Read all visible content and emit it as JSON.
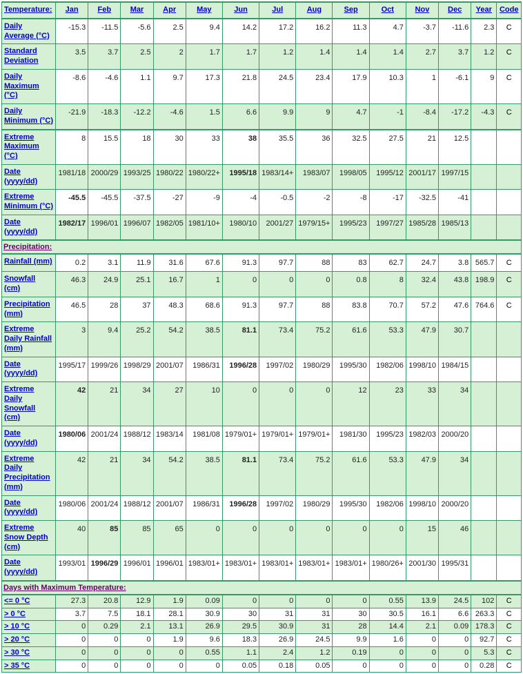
{
  "columns": [
    "Jan",
    "Feb",
    "Mar",
    "Apr",
    "May",
    "Jun",
    "Jul",
    "Aug",
    "Sep",
    "Oct",
    "Nov",
    "Dec",
    "Year",
    "Code"
  ],
  "sections": {
    "temperature": "Temperature:",
    "precipitation": "Precipitation:",
    "days_max_temp": "Days with Maximum Temperature:"
  },
  "rows": {
    "daily_avg": {
      "label": "Daily Average (°C)",
      "alt": false,
      "v": [
        "-15.3",
        "-11.5",
        "-5.6",
        "2.5",
        "9.4",
        "14.2",
        "17.2",
        "16.2",
        "11.3",
        "4.7",
        "-3.7",
        "-11.6",
        "2.3",
        "C"
      ]
    },
    "std_dev": {
      "label": "Standard Deviation",
      "alt": true,
      "v": [
        "3.5",
        "3.7",
        "2.5",
        "2",
        "1.7",
        "1.7",
        "1.2",
        "1.4",
        "1.4",
        "1.4",
        "2.7",
        "3.7",
        "1.2",
        "C"
      ]
    },
    "daily_max": {
      "label": "Daily Maximum (°C)",
      "alt": false,
      "v": [
        "-8.6",
        "-4.6",
        "1.1",
        "9.7",
        "17.3",
        "21.8",
        "24.5",
        "23.4",
        "17.9",
        "10.3",
        "1",
        "-6.1",
        "9",
        "C"
      ]
    },
    "daily_min": {
      "label": "Daily Minimum (°C)",
      "alt": true,
      "v": [
        "-21.9",
        "-18.3",
        "-12.2",
        "-4.6",
        "1.5",
        "6.6",
        "9.9",
        "9",
        "4.7",
        "-1",
        "-8.4",
        "-17.2",
        "-4.3",
        "C"
      ]
    },
    "ext_max": {
      "label": "Extreme Maximum (°C)",
      "alt": false,
      "v": [
        "8",
        "15.5",
        "18",
        "30",
        "33",
        "38",
        "35.5",
        "36",
        "32.5",
        "27.5",
        "21",
        "12.5",
        "",
        ""
      ],
      "bold": [
        5
      ]
    },
    "ext_max_dt": {
      "label": "Date (yyyy/dd)",
      "alt": true,
      "v": [
        "1981/18",
        "2000/29",
        "1993/25",
        "1980/22",
        "1980/22+",
        "1995/18",
        "1983/14+",
        "1983/07",
        "1998/05",
        "1995/12",
        "2001/17",
        "1997/15",
        "",
        ""
      ],
      "bold": [
        5
      ]
    },
    "ext_min": {
      "label": "Extreme Minimum (°C)",
      "alt": false,
      "v": [
        "-45.5",
        "-45.5",
        "-37.5",
        "-27",
        "-9",
        "-4",
        "-0.5",
        "-2",
        "-8",
        "-17",
        "-32.5",
        "-41",
        "",
        ""
      ],
      "bold": [
        0
      ]
    },
    "ext_min_dt": {
      "label": "Date (yyyy/dd)",
      "alt": true,
      "v": [
        "1982/17",
        "1996/01",
        "1996/07",
        "1982/05",
        "1981/10+",
        "1980/10",
        "2001/27",
        "1979/15+",
        "1995/23",
        "1997/27",
        "1985/28",
        "1985/13",
        "",
        ""
      ],
      "bold": [
        0
      ]
    },
    "rainfall": {
      "label": "Rainfall (mm)",
      "alt": false,
      "v": [
        "0.2",
        "3.1",
        "11.9",
        "31.6",
        "67.6",
        "91.3",
        "97.7",
        "88",
        "83",
        "62.7",
        "24.7",
        "3.8",
        "565.7",
        "C"
      ]
    },
    "snowfall": {
      "label": "Snowfall (cm)",
      "alt": true,
      "v": [
        "46.3",
        "24.9",
        "25.1",
        "16.7",
        "1",
        "0",
        "0",
        "0",
        "0.8",
        "8",
        "32.4",
        "43.8",
        "198.9",
        "C"
      ]
    },
    "precip": {
      "label": "Precipitation (mm)",
      "alt": false,
      "v": [
        "46.5",
        "28",
        "37",
        "48.3",
        "68.6",
        "91.3",
        "97.7",
        "88",
        "83.8",
        "70.7",
        "57.2",
        "47.6",
        "764.6",
        "C"
      ]
    },
    "ext_rain": {
      "label": "Extreme Daily Rainfall (mm)",
      "alt": true,
      "v": [
        "3",
        "9.4",
        "25.2",
        "54.2",
        "38.5",
        "81.1",
        "73.4",
        "75.2",
        "61.6",
        "53.3",
        "47.9",
        "30.7",
        "",
        ""
      ],
      "bold": [
        5
      ]
    },
    "ext_rain_dt": {
      "label": "Date (yyyy/dd)",
      "alt": false,
      "v": [
        "1995/17",
        "1999/26",
        "1998/29",
        "2001/07",
        "1986/31",
        "1996/28",
        "1997/02",
        "1980/29",
        "1995/30",
        "1982/06",
        "1998/10",
        "1984/15",
        "",
        ""
      ],
      "bold": [
        5
      ]
    },
    "ext_snow": {
      "label": "Extreme Daily Snowfall (cm)",
      "alt": true,
      "v": [
        "42",
        "21",
        "34",
        "27",
        "10",
        "0",
        "0",
        "0",
        "12",
        "23",
        "33",
        "34",
        "",
        ""
      ],
      "bold": [
        0
      ]
    },
    "ext_snow_dt": {
      "label": "Date (yyyy/dd)",
      "alt": false,
      "v": [
        "1980/06",
        "2001/24",
        "1988/12",
        "1983/14",
        "1981/08",
        "1979/01+",
        "1979/01+",
        "1979/01+",
        "1981/30",
        "1995/23",
        "1982/03",
        "2000/20",
        "",
        ""
      ],
      "bold": [
        0
      ]
    },
    "ext_prec": {
      "label": "Extreme Daily Precipitation (mm)",
      "alt": true,
      "v": [
        "42",
        "21",
        "34",
        "54.2",
        "38.5",
        "81.1",
        "73.4",
        "75.2",
        "61.6",
        "53.3",
        "47.9",
        "34",
        "",
        ""
      ],
      "bold": [
        5
      ]
    },
    "ext_prec_dt": {
      "label": "Date (yyyy/dd)",
      "alt": false,
      "v": [
        "1980/06",
        "2001/24",
        "1988/12",
        "2001/07",
        "1986/31",
        "1996/28",
        "1997/02",
        "1980/29",
        "1995/30",
        "1982/06",
        "1998/10",
        "2000/20",
        "",
        ""
      ],
      "bold": [
        5
      ]
    },
    "ext_depth": {
      "label": "Extreme Snow Depth (cm)",
      "alt": true,
      "v": [
        "40",
        "85",
        "85",
        "65",
        "0",
        "0",
        "0",
        "0",
        "0",
        "0",
        "15",
        "46",
        "",
        ""
      ],
      "bold": [
        1
      ]
    },
    "ext_depth_dt": {
      "label": "Date (yyyy/dd)",
      "alt": false,
      "v": [
        "1993/01",
        "1996/29",
        "1996/01",
        "1996/01",
        "1983/01+",
        "1983/01+",
        "1983/01+",
        "1983/01+",
        "1983/01+",
        "1980/26+",
        "2001/30",
        "1995/31",
        "",
        ""
      ],
      "bold": [
        1
      ]
    },
    "d_le0": {
      "label": "<= 0 °C",
      "alt": true,
      "tight": true,
      "v": [
        "27.3",
        "20.8",
        "12.9",
        "1.9",
        "0.09",
        "0",
        "0",
        "0",
        "0",
        "0.55",
        "13.9",
        "24.5",
        "102",
        "C"
      ]
    },
    "d_gt0": {
      "label": "> 0 °C",
      "alt": false,
      "tight": true,
      "v": [
        "3.7",
        "7.5",
        "18.1",
        "28.1",
        "30.9",
        "30",
        "31",
        "31",
        "30",
        "30.5",
        "16.1",
        "6.6",
        "263.3",
        "C"
      ]
    },
    "d_gt10": {
      "label": "> 10 °C",
      "alt": true,
      "tight": true,
      "v": [
        "0",
        "0.29",
        "2.1",
        "13.1",
        "26.9",
        "29.5",
        "30.9",
        "31",
        "28",
        "14.4",
        "2.1",
        "0.09",
        "178.3",
        "C"
      ]
    },
    "d_gt20": {
      "label": "> 20 °C",
      "alt": false,
      "tight": true,
      "v": [
        "0",
        "0",
        "0",
        "1.9",
        "9.6",
        "18.3",
        "26.9",
        "24.5",
        "9.9",
        "1.6",
        "0",
        "0",
        "92.7",
        "C"
      ]
    },
    "d_gt30": {
      "label": "> 30 °C",
      "alt": true,
      "tight": true,
      "v": [
        "0",
        "0",
        "0",
        "0",
        "0.55",
        "1.1",
        "2.4",
        "1.2",
        "0.19",
        "0",
        "0",
        "0",
        "5.3",
        "C"
      ]
    },
    "d_gt35": {
      "label": "> 35 °C",
      "alt": false,
      "tight": true,
      "v": [
        "0",
        "0",
        "0",
        "0",
        "0",
        "0.05",
        "0.18",
        "0.05",
        "0",
        "0",
        "0",
        "0",
        "0.28",
        "C"
      ]
    }
  },
  "row_order": [
    [
      "section",
      "temperature"
    ],
    [
      "row",
      "daily_avg"
    ],
    [
      "row",
      "std_dev"
    ],
    [
      "row",
      "daily_max"
    ],
    [
      "row",
      "daily_min",
      true
    ],
    [
      "row",
      "ext_max"
    ],
    [
      "row",
      "ext_max_dt"
    ],
    [
      "row",
      "ext_min"
    ],
    [
      "row",
      "ext_min_dt",
      true
    ],
    [
      "section",
      "precipitation"
    ],
    [
      "row",
      "rainfall"
    ],
    [
      "row",
      "snowfall"
    ],
    [
      "row",
      "precip"
    ],
    [
      "row",
      "ext_rain"
    ],
    [
      "row",
      "ext_rain_dt"
    ],
    [
      "row",
      "ext_snow"
    ],
    [
      "row",
      "ext_snow_dt"
    ],
    [
      "row",
      "ext_prec"
    ],
    [
      "row",
      "ext_prec_dt"
    ],
    [
      "row",
      "ext_depth"
    ],
    [
      "row",
      "ext_depth_dt",
      true
    ],
    [
      "section",
      "days_max_temp"
    ],
    [
      "row",
      "d_le0"
    ],
    [
      "row",
      "d_gt0"
    ],
    [
      "row",
      "d_gt10"
    ],
    [
      "row",
      "d_gt20"
    ],
    [
      "row",
      "d_gt30"
    ],
    [
      "row",
      "d_gt35"
    ]
  ]
}
